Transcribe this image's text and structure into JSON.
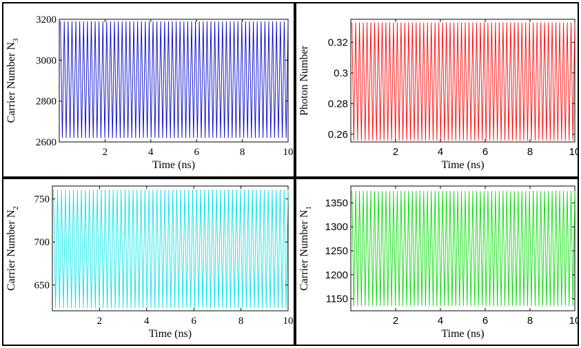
{
  "chart_data": [
    {
      "type": "line",
      "title": "",
      "xlabel": "Time (ns)",
      "ylabel": "Carrier Number N",
      "ylabel_sub": "3",
      "xlim": [
        0,
        10
      ],
      "ylim": [
        2600,
        3200
      ],
      "xticks": [
        2,
        4,
        6,
        8,
        10
      ],
      "yticks": [
        2600,
        2800,
        3000,
        3200
      ],
      "ytick_labels": [
        "2600",
        "2800",
        "3000",
        "3200"
      ],
      "color": "#0000cc",
      "series": [
        {
          "type": "oscillation",
          "min": 2620,
          "max": 3190,
          "cycles": 59,
          "x_start": 0.05,
          "x_end": 10
        }
      ]
    },
    {
      "type": "line",
      "title": "",
      "xlabel": "Time (ns)",
      "ylabel": "Photon Number",
      "ylabel_sub": "",
      "xlim": [
        0,
        10
      ],
      "ylim": [
        0.255,
        0.335
      ],
      "xticks": [
        2,
        4,
        6,
        8,
        10
      ],
      "yticks": [
        0.26,
        0.28,
        0.3,
        0.32
      ],
      "ytick_labels": [
        "0.26",
        "0.28",
        "0.3",
        "0.32"
      ],
      "color": "#ff0000",
      "series": [
        {
          "type": "oscillation",
          "min": 0.256,
          "max": 0.333,
          "cycles": 59,
          "x_start": 0.05,
          "x_end": 10
        }
      ]
    },
    {
      "type": "line",
      "title": "",
      "xlabel": "Time (ns)",
      "ylabel": "Carrier Number N",
      "ylabel_sub": "2",
      "xlim": [
        0,
        10
      ],
      "ylim": [
        620,
        765
      ],
      "xticks": [
        2,
        4,
        6,
        8,
        10
      ],
      "yticks": [
        650,
        700,
        750
      ],
      "ytick_labels": [
        "650",
        "700",
        "750"
      ],
      "color": "#00e5e5",
      "series": [
        {
          "type": "oscillation",
          "min": 623,
          "max": 761,
          "cycles": 59,
          "x_start": 0.05,
          "x_end": 10
        }
      ]
    },
    {
      "type": "line",
      "title": "",
      "xlabel": "Time (ns)",
      "ylabel": "Carrier Number N",
      "ylabel_sub": "1",
      "xlim": [
        0,
        10
      ],
      "ylim": [
        1125,
        1385
      ],
      "xticks": [
        2,
        4,
        6,
        8,
        10
      ],
      "yticks": [
        1150,
        1200,
        1250,
        1300,
        1350
      ],
      "ytick_labels": [
        "1150",
        "1200",
        "1250",
        "1300",
        "1350"
      ],
      "color": "#00dd00",
      "series": [
        {
          "type": "oscillation",
          "min": 1135,
          "max": 1375,
          "cycles": 59,
          "x_start": 0.05,
          "x_end": 10
        }
      ]
    }
  ]
}
